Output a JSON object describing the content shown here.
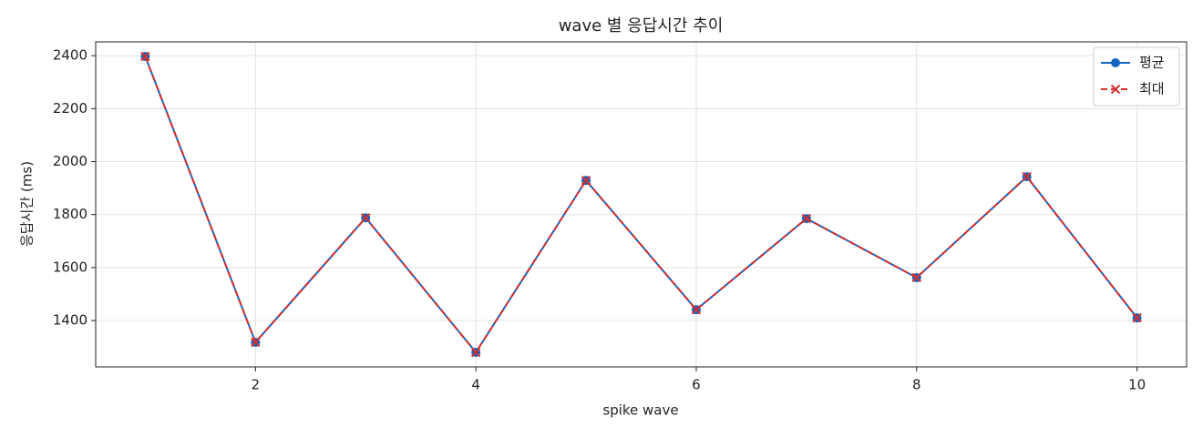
{
  "chart_data": {
    "type": "line",
    "title": "wave 별 응답시간 추이",
    "xlabel": "spike wave",
    "ylabel": "응답시간 (ms)",
    "x": [
      1,
      2,
      3,
      4,
      5,
      6,
      7,
      8,
      9,
      10
    ],
    "series": [
      {
        "name": "평균",
        "color": "#1565c0",
        "marker": "o",
        "linestyle": "solid",
        "values": [
          2397,
          1318,
          1788,
          1280,
          1929,
          1441,
          1785,
          1562,
          1943,
          1410
        ]
      },
      {
        "name": "최대",
        "color": "#d32f2f",
        "marker": "x",
        "linestyle": "dashed",
        "values": [
          2397,
          1318,
          1788,
          1280,
          1929,
          1441,
          1785,
          1562,
          1943,
          1410
        ]
      }
    ],
    "xlim": [
      0.55,
      10.45
    ],
    "ylim": [
      1225,
      2452
    ],
    "xticks": [
      2,
      4,
      6,
      8,
      10
    ],
    "yticks": [
      1400,
      1600,
      1800,
      2000,
      2200,
      2400
    ],
    "grid": true,
    "legend": "upper right"
  }
}
